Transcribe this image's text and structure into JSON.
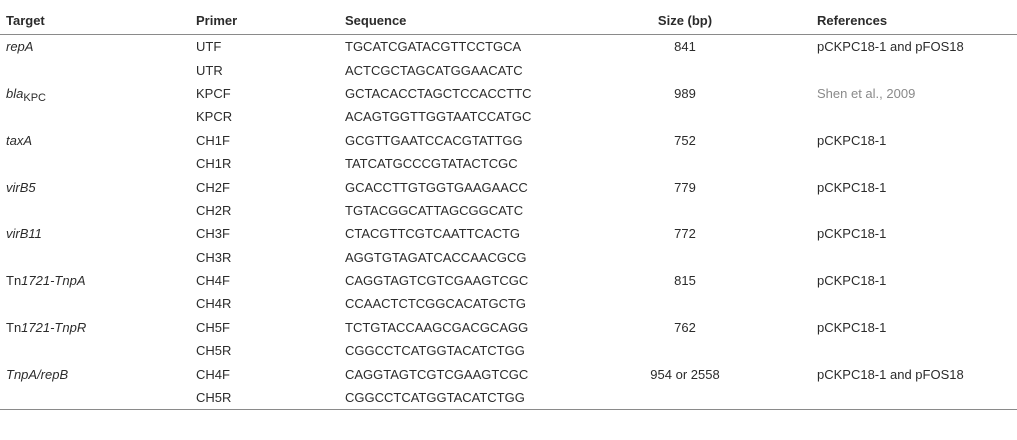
{
  "headers": {
    "target": "Target",
    "primer": "Primer",
    "sequence": "Sequence",
    "size": "Size (bp)",
    "references": "References"
  },
  "rows": [
    {
      "target": "repA",
      "primer": "UTF",
      "sequence": "TGCATCGATACGTTCCTGCA",
      "size": "841",
      "references": "pCKPC18-1 and pFOS18"
    },
    {
      "target": "",
      "primer": "UTR",
      "sequence": "ACTCGCTAGCATGGAACATC",
      "size": "",
      "references": ""
    },
    {
      "target_main": "bla",
      "target_sub": "KPC",
      "primer": "KPCF",
      "sequence": "GCTACACCTAGCTCCACCTTC",
      "size": "989",
      "references": "Shen et al., 2009"
    },
    {
      "target": "",
      "primer": "KPCR",
      "sequence": "ACAGTGGTTGGTAATCCATGC",
      "size": "",
      "references": ""
    },
    {
      "target": "taxA",
      "primer": "CH1F",
      "sequence": "GCGTTGAATCCACGTATTGG",
      "size": "752",
      "references": "pCKPC18-1"
    },
    {
      "target": "",
      "primer": "CH1R",
      "sequence": "TATCATGCCCGTATACTCGC",
      "size": "",
      "references": ""
    },
    {
      "target": "virB5",
      "primer": "CH2F",
      "sequence": "GCACCTTGTGGTGAAGAACC",
      "size": "779",
      "references": "pCKPC18-1"
    },
    {
      "target": "",
      "primer": "CH2R",
      "sequence": "TGTACGGCATTAGCGGCATC",
      "size": "",
      "references": ""
    },
    {
      "target": "virB11",
      "primer": "CH3F",
      "sequence": "CTACGTTCGTCAATTCACTG",
      "size": "772",
      "references": "pCKPC18-1"
    },
    {
      "target": "",
      "primer": "CH3R",
      "sequence": "AGGTGTAGATCACCAACGCG",
      "size": "",
      "references": ""
    },
    {
      "target_a": "Tn",
      "target_b": "1721-TnpA",
      "primer": "CH4F",
      "sequence": "CAGGTAGTCGTCGAAGTCGC",
      "size": "815",
      "references": "pCKPC18-1"
    },
    {
      "target": "",
      "primer": "CH4R",
      "sequence": "CCAACTCTCGGCACATGCTG",
      "size": "",
      "references": ""
    },
    {
      "target_a": "Tn",
      "target_b": "1721-TnpR",
      "primer": "CH5F",
      "sequence": "TCTGTACCAAGCGACGCAGG",
      "size": "762",
      "references": "pCKPC18-1"
    },
    {
      "target": "",
      "primer": "CH5R",
      "sequence": "CGGCCTCATGGTACATCTGG",
      "size": "",
      "references": ""
    },
    {
      "target": "TnpA/repB",
      "primer": "CH4F",
      "sequence": "CAGGTAGTCGTCGAAGTCGC",
      "size": "954 or 2558",
      "references": "pCKPC18-1 and pFOS18"
    },
    {
      "target": "",
      "primer": "CH5R",
      "sequence": "CGGCCTCATGGTACATCTGG",
      "size": "",
      "references": ""
    }
  ]
}
